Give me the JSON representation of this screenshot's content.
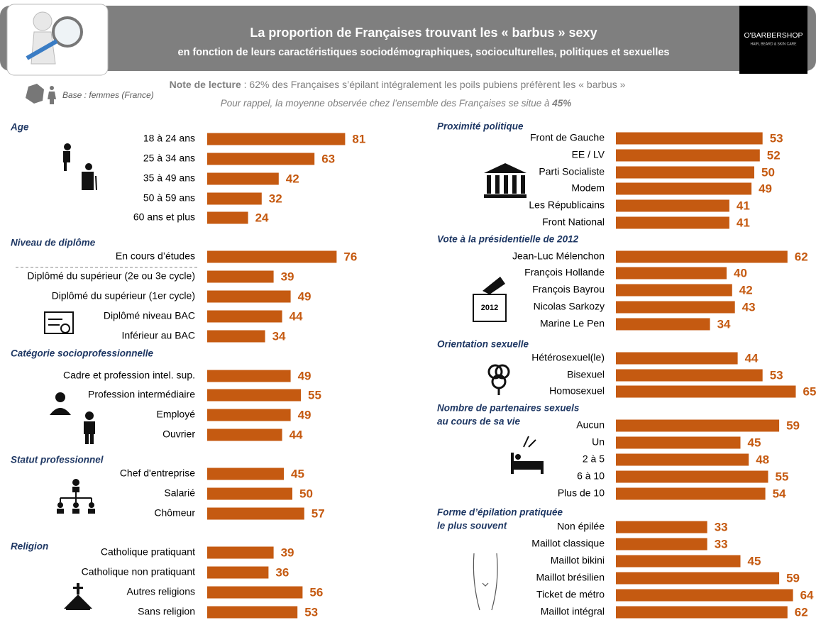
{
  "header": {
    "title": "La proportion de Françaises trouvant les « barbus » sexy",
    "subtitle": "en fonction de leurs caractéristiques sociodémographiques, socioculturelles, politiques et sexuelles",
    "logo_name": "O'BARBERSHOP",
    "logo_tagline": "HAIR, BEARD & SKIN CARE",
    "note_label": "Note de lecture",
    "note_text": " : 62% des Françaises s’épilant intégralement les poils pubiens préfèrent les « barbus »",
    "reminder_text": "Pour rappel, la moyenne observée chez l’ensemble des Françaises se situe à ",
    "reminder_value": "45%",
    "base": "Base : femmes (France)",
    "ballot_label": "2012"
  },
  "chart_data": [
    {
      "type": "bar",
      "title": [
        "Age"
      ],
      "color": "#c55a11",
      "categories": [
        "18 à 24 ans",
        "25 à 34 ans",
        "35 à 49 ans",
        "50 à 59 ans",
        "60 ans et plus"
      ],
      "values": [
        81,
        63,
        42,
        32,
        24
      ]
    },
    {
      "type": "bar",
      "title": [
        "Niveau de diplôme"
      ],
      "color": "#c55a11",
      "categories": [
        "En cours d’études",
        "Diplômé du supérieur (2e ou 3e cycle)",
        "Diplômé du supérieur (1er cycle)",
        "Diplômé niveau BAC",
        "Inférieur au BAC"
      ],
      "values": [
        76,
        39,
        49,
        44,
        34
      ]
    },
    {
      "type": "bar",
      "title": [
        "Catégorie socioprofessionnelle"
      ],
      "color": "#c55a11",
      "categories": [
        "Cadre et profession intel. sup.",
        "Profession intermédiaire",
        "Employé",
        "Ouvrier"
      ],
      "values": [
        49,
        55,
        49,
        44
      ]
    },
    {
      "type": "bar",
      "title": [
        "Statut professionnel"
      ],
      "color": "#c55a11",
      "categories": [
        "Chef d'entreprise",
        "Salarié",
        "Chômeur"
      ],
      "values": [
        45,
        50,
        57
      ]
    },
    {
      "type": "bar",
      "title": [
        "Religion"
      ],
      "color": "#c55a11",
      "categories": [
        "Catholique pratiquant",
        "Catholique non pratiquant",
        "Autres religions",
        "Sans  religion"
      ],
      "values": [
        39,
        36,
        56,
        53
      ]
    },
    {
      "type": "bar",
      "title": [
        "Proximité politique"
      ],
      "color": "#c55a11",
      "categories": [
        "Front de Gauche",
        "EE / LV",
        "Parti Socialiste",
        "Modem",
        "Les Républicains",
        "Front National"
      ],
      "values": [
        53,
        52,
        50,
        49,
        41,
        41
      ]
    },
    {
      "type": "bar",
      "title": [
        "Vote à la présidentielle de 2012"
      ],
      "color": "#c55a11",
      "categories": [
        "Jean-Luc Mélenchon",
        "François Hollande",
        "François Bayrou",
        "Nicolas Sarkozy",
        "Marine Le Pen"
      ],
      "values": [
        62,
        40,
        42,
        43,
        34
      ]
    },
    {
      "type": "bar",
      "title": [
        "Orientation sexuelle"
      ],
      "color": "#c55a11",
      "categories": [
        "Hétérosexuel(le)",
        "Bisexuel",
        "Homosexuel"
      ],
      "values": [
        44,
        53,
        65
      ]
    },
    {
      "type": "bar",
      "title": [
        "Nombre de partenaires sexuels",
        "au cours de sa vie"
      ],
      "color": "#c55a11",
      "categories": [
        "Aucun",
        "Un",
        "2 à 5",
        "6 à 10",
        "Plus de 10"
      ],
      "values": [
        59,
        45,
        48,
        55,
        54
      ]
    },
    {
      "type": "bar",
      "title": [
        "Forme d’épilation pratiquée",
        "le plus souvent"
      ],
      "color": "#c55a11",
      "categories": [
        "Non épilée",
        "Maillot classique",
        "Maillot bikini",
        "Maillot brésilien",
        "Ticket de métro",
        "Maillot intégral"
      ],
      "values": [
        33,
        33,
        45,
        59,
        64,
        62
      ]
    }
  ]
}
